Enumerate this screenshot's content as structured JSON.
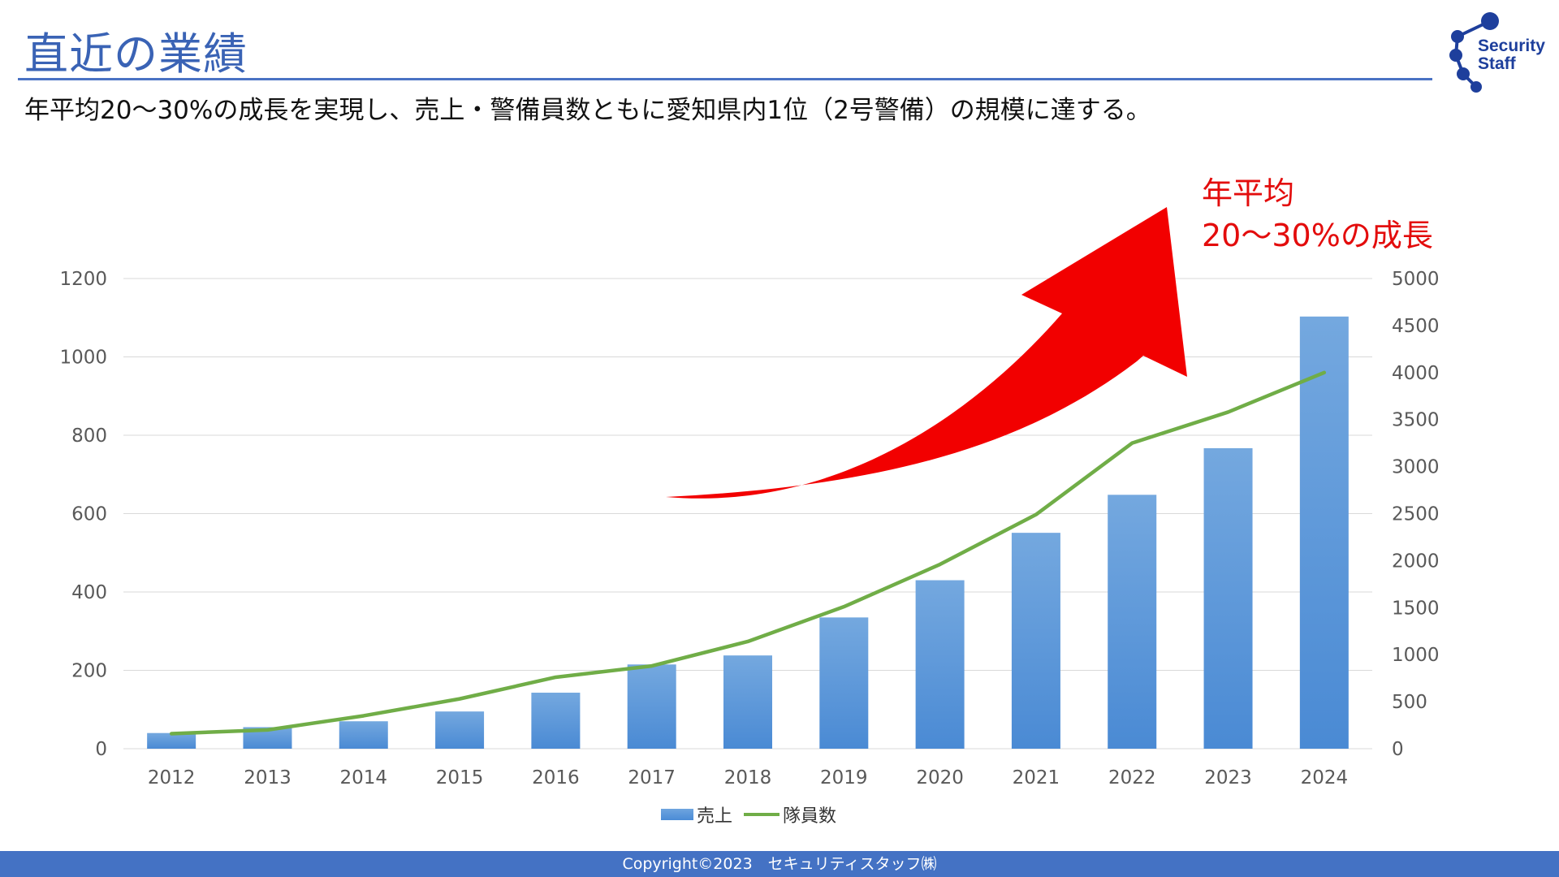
{
  "page": {
    "title": "直近の業績",
    "subtitle": "年平均20～30%の成長を実現し、売上・警備員数ともに愛知県内1位（2号警備）の規模に達する。",
    "callout_line1": "年平均",
    "callout_line2": "20～30%の成長",
    "footer": "Copyright©2023　セキュリティスタッフ㈱",
    "logo_line1": "Security",
    "logo_line2": "Staff"
  },
  "colors": {
    "accent": "#3a63b5",
    "bar": "#5b9bd5",
    "line": "#70ad47",
    "arrow": "#f20000",
    "footer": "#4472c4"
  },
  "chart_data": {
    "type": "bar",
    "categories": [
      "2012",
      "2013",
      "2014",
      "2015",
      "2016",
      "2017",
      "2018",
      "2019",
      "2020",
      "2021",
      "2022",
      "2023",
      "2024"
    ],
    "series": [
      {
        "name": "売上",
        "type": "bar",
        "axis": "left",
        "values": [
          40,
          55,
          70,
          95,
          143,
          215,
          238,
          335,
          430,
          551,
          648,
          767,
          1103
        ]
      },
      {
        "name": "隊員数",
        "type": "line",
        "axis": "right",
        "values": [
          160,
          200,
          350,
          530,
          760,
          880,
          1140,
          1510,
          1960,
          2490,
          3250,
          3580,
          4000
        ]
      }
    ],
    "y_left": {
      "min": 0,
      "max": 1200,
      "ticks": [
        "0",
        "200",
        "400",
        "600",
        "800",
        "1000",
        "1200"
      ]
    },
    "y_right": {
      "min": 0,
      "max": 5000,
      "ticks": [
        "0",
        "500",
        "1000",
        "1500",
        "2000",
        "2500",
        "3000",
        "3500",
        "4000",
        "4500",
        "5000"
      ]
    },
    "grid": true,
    "legend_position": "bottom"
  }
}
